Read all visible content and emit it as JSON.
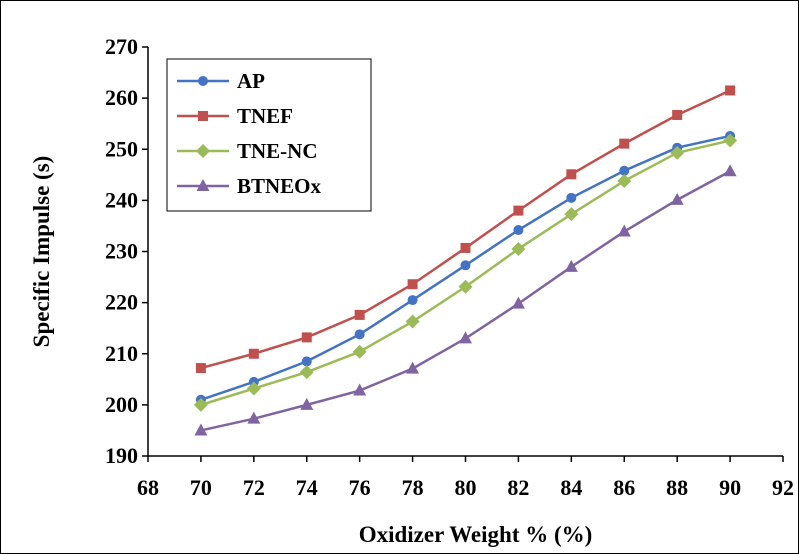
{
  "chart_data": {
    "type": "line",
    "title": "",
    "xlabel": "Oxidizer  Weight % (%)",
    "ylabel": "Specific Impulse  (s)",
    "xlim": [
      68,
      92
    ],
    "ylim": [
      190,
      270
    ],
    "xticks": [
      68,
      70,
      72,
      74,
      76,
      78,
      80,
      82,
      84,
      86,
      88,
      90,
      92
    ],
    "yticks": [
      190,
      200,
      210,
      220,
      230,
      240,
      250,
      260,
      270
    ],
    "grid": false,
    "legend_position": "top-left",
    "x": [
      70,
      72,
      74,
      76,
      78,
      80,
      82,
      84,
      86,
      88,
      90
    ],
    "series": [
      {
        "name": "AP",
        "color": "#4472C4",
        "marker": "circle",
        "values": [
          201.0,
          204.5,
          208.5,
          213.8,
          220.5,
          227.3,
          234.2,
          240.5,
          245.8,
          250.3,
          252.6
        ]
      },
      {
        "name": "TNEF",
        "color": "#C0504D",
        "marker": "square",
        "values": [
          207.2,
          210.0,
          213.2,
          217.6,
          223.6,
          230.7,
          238.0,
          245.1,
          251.1,
          256.7,
          261.5
        ]
      },
      {
        "name": "TNE-NC",
        "color": "#9BBB59",
        "marker": "diamond",
        "values": [
          200.0,
          203.2,
          206.4,
          210.4,
          216.3,
          223.1,
          230.5,
          237.3,
          243.8,
          249.3,
          251.7
        ]
      },
      {
        "name": "BTNEOx",
        "color": "#8064A2",
        "marker": "triangle",
        "values": [
          195.0,
          197.3,
          200.0,
          202.8,
          207.1,
          213.0,
          219.8,
          227.0,
          233.9,
          240.1,
          245.7
        ]
      }
    ]
  }
}
